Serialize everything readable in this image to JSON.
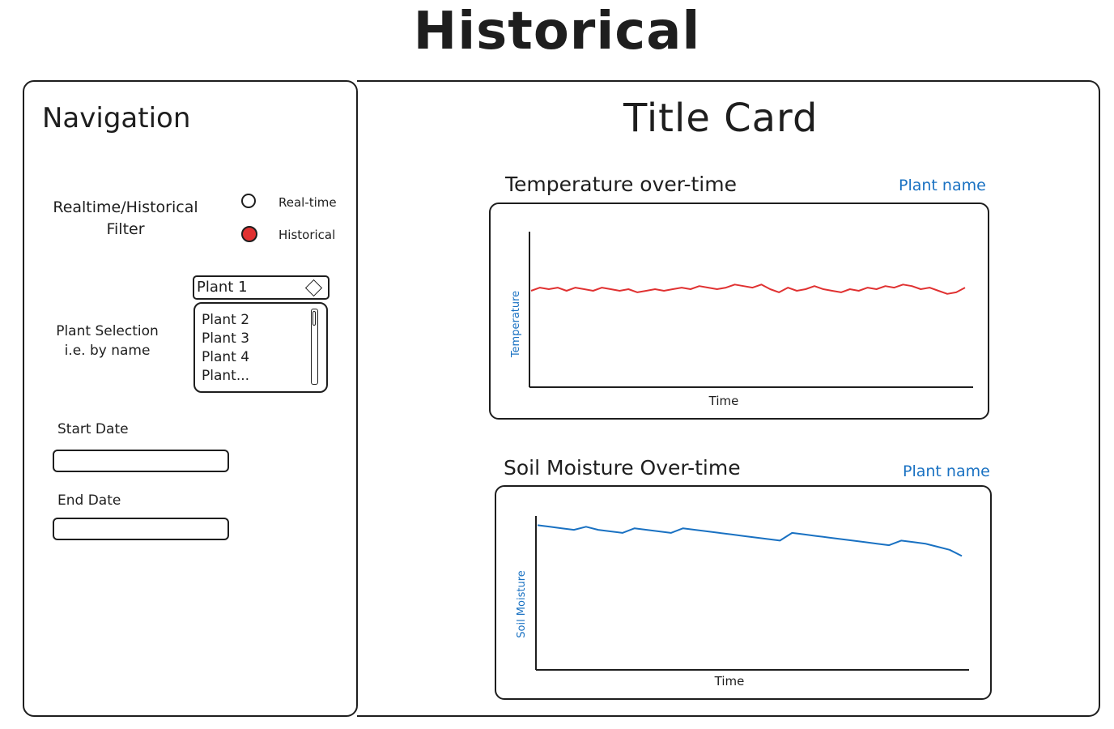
{
  "header": {
    "title": "Historical"
  },
  "navigation": {
    "title": "Navigation",
    "filter": {
      "label_line1": "Realtime/Historical",
      "label_line2": "Filter",
      "options": [
        {
          "label": "Real-time",
          "selected": false
        },
        {
          "label": "Historical",
          "selected": true
        }
      ],
      "selected_color": "#e03131"
    },
    "plant_selection": {
      "label_line1": "Plant Selection",
      "label_line2": "i.e. by name",
      "selected": "Plant 1",
      "options": [
        "Plant 2",
        "Plant 3",
        "Plant 4",
        "Plant..."
      ]
    },
    "start_date": {
      "label": "Start Date",
      "value": ""
    },
    "end_date": {
      "label": "End Date",
      "value": ""
    }
  },
  "main": {
    "title": "Title Card",
    "charts": [
      {
        "title": "Temperature over-time",
        "plant_name": "Plant name"
      },
      {
        "title": "Soil Moisture Over-time",
        "plant_name": "Plant name"
      }
    ]
  },
  "chart_data": [
    {
      "type": "line",
      "title": "Temperature over-time",
      "xlabel": "Time",
      "ylabel": "Temperature",
      "ylim": [
        0,
        100
      ],
      "series": [
        {
          "color": "#e03131",
          "values": [
            62,
            64,
            63,
            64,
            62,
            64,
            63,
            62,
            64,
            63,
            62,
            63,
            61,
            62,
            63,
            62,
            63,
            64,
            63,
            65,
            64,
            63,
            64,
            66,
            65,
            64,
            66,
            63,
            61,
            64,
            62,
            63,
            65,
            63,
            62,
            61,
            63,
            62,
            64,
            63,
            65,
            64,
            66,
            65,
            63,
            64,
            62,
            60,
            61,
            64
          ]
        }
      ]
    },
    {
      "type": "line",
      "title": "Soil Moisture Over-time",
      "xlabel": "Time",
      "ylabel": "Soil Moisture",
      "ylim": [
        0,
        100
      ],
      "series": [
        {
          "color": "#1971c2",
          "values": [
            94,
            93,
            92,
            91,
            93,
            91,
            90,
            89,
            92,
            91,
            90,
            89,
            92,
            91,
            90,
            89,
            88,
            87,
            86,
            85,
            84,
            89,
            88,
            87,
            86,
            85,
            84,
            83,
            82,
            81,
            84,
            83,
            82,
            80,
            78,
            74
          ]
        }
      ]
    }
  ]
}
